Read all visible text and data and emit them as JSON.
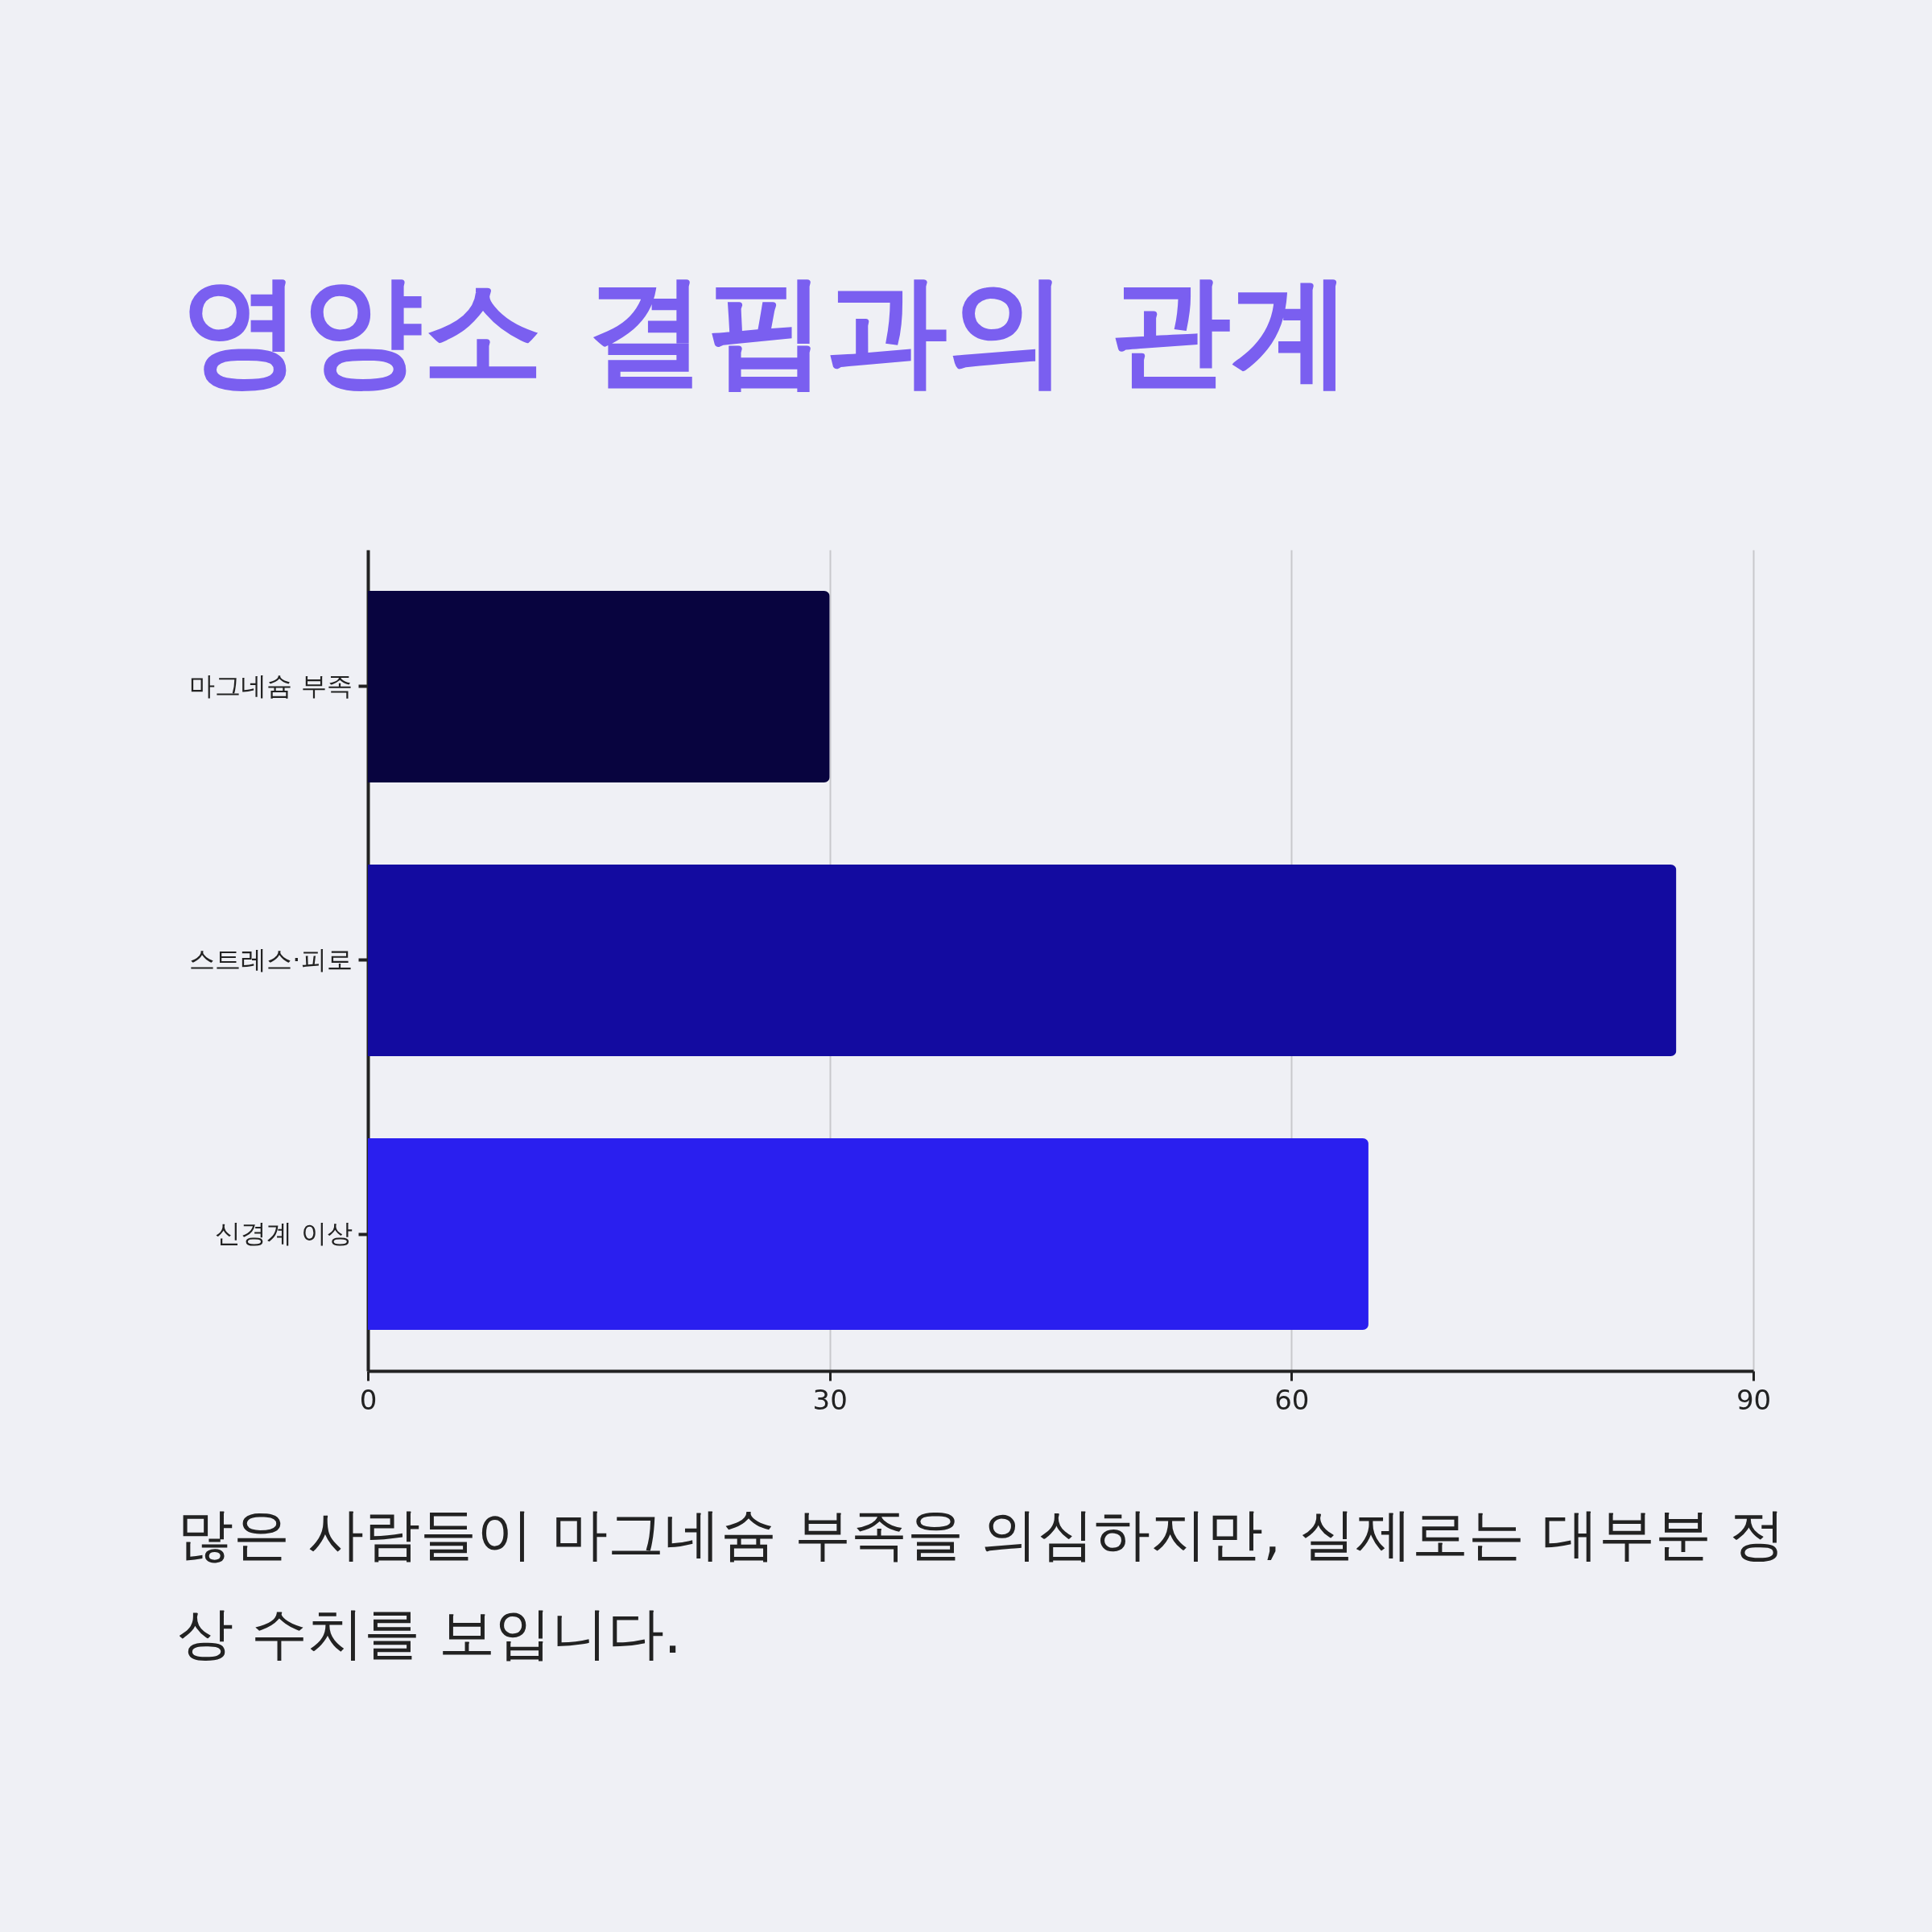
{
  "chart_data": {
    "type": "bar",
    "orientation": "horizontal",
    "title": "영양소 결핍과의 관계",
    "categories": [
      "마그네슘 부족",
      "스트레스·피로",
      "신경계 이상"
    ],
    "values": [
      30,
      85,
      65
    ],
    "colors": [
      "#08043f",
      "#130ba0",
      "#2a1fef"
    ],
    "xlim": [
      0,
      90
    ],
    "xticks": [
      0,
      30,
      60,
      90
    ],
    "grid": "x",
    "annotations": [
      "많은 사람들이 마그네슘 부족을 의심하지만, 실제로는 대부분 정상 수치를 보입니다."
    ]
  }
}
